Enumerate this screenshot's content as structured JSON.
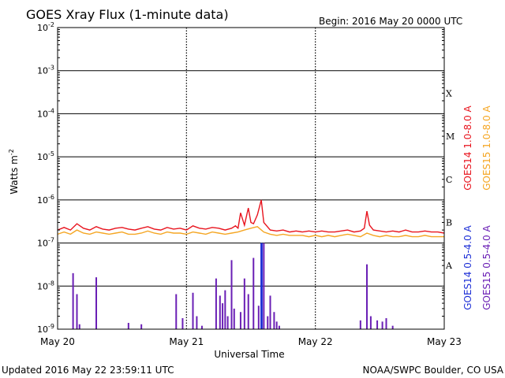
{
  "header": {
    "title": "GOES Xray Flux (1-minute data)",
    "begin": "Begin:  2016 May 20 0000 UTC"
  },
  "footer": {
    "updated": "Updated 2016 May 22 23:59:11 UTC",
    "credit": "NOAA/SWPC Boulder, CO USA"
  },
  "colors": {
    "goes14_long": "#e8141e",
    "goes15_long": "#f5a623",
    "goes14_short": "#1d2fd6",
    "goes15_short": "#6a1fb5",
    "axes": "#000000"
  },
  "chart_data": {
    "type": "line",
    "title": "GOES Xray Flux (1-minute data)",
    "xlabel": "Universal Time",
    "ylabel": "Watts m-2",
    "ylabel_base": "Watts m",
    "ylabel_exp": "-2",
    "yscale": "log",
    "ylim": [
      1e-09,
      0.01
    ],
    "y_ticks": [
      {
        "base": "10",
        "exp": "-9",
        "value": 1e-09
      },
      {
        "base": "10",
        "exp": "-8",
        "value": 1e-08
      },
      {
        "base": "10",
        "exp": "-7",
        "value": 1e-07
      },
      {
        "base": "10",
        "exp": "-6",
        "value": 1e-06
      },
      {
        "base": "10",
        "exp": "-5",
        "value": 1e-05
      },
      {
        "base": "10",
        "exp": "-4",
        "value": 0.0001
      },
      {
        "base": "10",
        "exp": "-3",
        "value": 0.001
      },
      {
        "base": "10",
        "exp": "-2",
        "value": 0.01
      }
    ],
    "x_ticks": [
      "May 20",
      "May 21",
      "May 22",
      "May 23"
    ],
    "flare_classes": [
      {
        "label": "A",
        "value": 3e-08
      },
      {
        "label": "B",
        "value": 3e-07
      },
      {
        "label": "C",
        "value": 3e-06
      },
      {
        "label": "M",
        "value": 3e-05
      },
      {
        "label": "X",
        "value": 0.0003
      }
    ],
    "grid": true,
    "legend_placement": "right",
    "legend_long": [
      {
        "name": "GOES14 1.0-8.0 A",
        "color": "#e8141e"
      },
      {
        "name": "GOES15 1.0-8.0 A",
        "color": "#f5a623"
      }
    ],
    "legend_short": [
      {
        "name": "GOES14 0.5-4.0 A",
        "color": "#1d2fd6"
      },
      {
        "name": "GOES15 0.5-4.0 A",
        "color": "#6a1fb5"
      }
    ],
    "x_unit": "days since 2016 May 20 0000 UTC",
    "series": [
      {
        "name": "GOES14 1.0-8.0 A",
        "color": "#e8141e",
        "x": [
          0,
          0.05,
          0.1,
          0.15,
          0.2,
          0.25,
          0.3,
          0.35,
          0.4,
          0.45,
          0.5,
          0.55,
          0.6,
          0.65,
          0.7,
          0.75,
          0.8,
          0.85,
          0.9,
          0.95,
          1.0,
          1.05,
          1.1,
          1.15,
          1.2,
          1.25,
          1.3,
          1.35,
          1.38,
          1.4,
          1.42,
          1.45,
          1.48,
          1.5,
          1.52,
          1.55,
          1.58,
          1.6,
          1.65,
          1.7,
          1.75,
          1.8,
          1.85,
          1.9,
          1.95,
          2.0,
          2.05,
          2.1,
          2.15,
          2.2,
          2.25,
          2.3,
          2.35,
          2.38,
          2.4,
          2.42,
          2.45,
          2.5,
          2.55,
          2.6,
          2.65,
          2.7,
          2.75,
          2.8,
          2.85,
          2.9,
          2.95,
          3.0
        ],
        "y": [
          2e-07,
          2.3e-07,
          2e-07,
          2.8e-07,
          2.2e-07,
          2e-07,
          2.4e-07,
          2.1e-07,
          2e-07,
          2.2e-07,
          2.3e-07,
          2.1e-07,
          2e-07,
          2.2e-07,
          2.4e-07,
          2.1e-07,
          2e-07,
          2.3e-07,
          2.1e-07,
          2.2e-07,
          2e-07,
          2.5e-07,
          2.2e-07,
          2.1e-07,
          2.3e-07,
          2.2e-07,
          2e-07,
          2.2e-07,
          2.5e-07,
          2.2e-07,
          5e-07,
          2.6e-07,
          6.5e-07,
          3e-07,
          2.8e-07,
          4.5e-07,
          1e-06,
          3e-07,
          2e-07,
          1.9e-07,
          2e-07,
          1.8e-07,
          1.9e-07,
          1.8e-07,
          1.9e-07,
          1.8e-07,
          1.9e-07,
          1.8e-07,
          1.8e-07,
          1.9e-07,
          2e-07,
          1.8e-07,
          1.9e-07,
          2.2e-07,
          5.5e-07,
          2.6e-07,
          2e-07,
          1.9e-07,
          1.8e-07,
          1.9e-07,
          1.8e-07,
          2e-07,
          1.8e-07,
          1.8e-07,
          1.9e-07,
          1.8e-07,
          1.8e-07,
          1.7e-07
        ]
      },
      {
        "name": "GOES15 1.0-8.0 A",
        "color": "#f5a623",
        "x": [
          0,
          0.05,
          0.1,
          0.15,
          0.2,
          0.25,
          0.3,
          0.35,
          0.4,
          0.45,
          0.5,
          0.55,
          0.6,
          0.65,
          0.7,
          0.75,
          0.8,
          0.85,
          0.9,
          0.95,
          1.0,
          1.05,
          1.1,
          1.15,
          1.2,
          1.25,
          1.3,
          1.35,
          1.4,
          1.45,
          1.5,
          1.55,
          1.6,
          1.65,
          1.7,
          1.75,
          1.8,
          1.85,
          1.9,
          1.95,
          2.0,
          2.05,
          2.1,
          2.15,
          2.2,
          2.25,
          2.3,
          2.35,
          2.4,
          2.45,
          2.5,
          2.55,
          2.6,
          2.65,
          2.7,
          2.75,
          2.8,
          2.85,
          2.9,
          2.95,
          3.0
        ],
        "y": [
          1.6e-07,
          1.8e-07,
          1.6e-07,
          2e-07,
          1.7e-07,
          1.6e-07,
          1.8e-07,
          1.7e-07,
          1.6e-07,
          1.7e-07,
          1.8e-07,
          1.6e-07,
          1.6e-07,
          1.7e-07,
          1.9e-07,
          1.7e-07,
          1.6e-07,
          1.8e-07,
          1.7e-07,
          1.7e-07,
          1.6e-07,
          1.8e-07,
          1.7e-07,
          1.6e-07,
          1.8e-07,
          1.7e-07,
          1.6e-07,
          1.7e-07,
          1.8e-07,
          2e-07,
          2.2e-07,
          2.4e-07,
          1.8e-07,
          1.6e-07,
          1.5e-07,
          1.6e-07,
          1.5e-07,
          1.5e-07,
          1.5e-07,
          1.4e-07,
          1.5e-07,
          1.4e-07,
          1.5e-07,
          1.4e-07,
          1.5e-07,
          1.6e-07,
          1.5e-07,
          1.4e-07,
          1.7e-07,
          1.5e-07,
          1.4e-07,
          1.5e-07,
          1.4e-07,
          1.4e-07,
          1.5e-07,
          1.4e-07,
          1.4e-07,
          1.5e-07,
          1.4e-07,
          1.4e-07,
          1.4e-07
        ]
      },
      {
        "name": "GOES14 0.5-4.0 A",
        "color": "#1d2fd6",
        "x": [
          1.58,
          1.585
        ],
        "y": [
          1e-07,
          1e-07
        ]
      },
      {
        "name": "GOES15 0.5-4.0 A",
        "color": "#6a1fb5",
        "x": [
          0.12,
          0.15,
          0.17,
          0.3,
          0.55,
          0.65,
          0.92,
          0.97,
          1.05,
          1.08,
          1.12,
          1.23,
          1.26,
          1.28,
          1.3,
          1.32,
          1.35,
          1.37,
          1.42,
          1.45,
          1.48,
          1.52,
          1.56,
          1.6,
          1.63,
          1.65,
          1.68,
          1.7,
          1.72,
          2.35,
          2.4,
          2.43,
          2.48,
          2.52,
          2.55,
          2.6
        ],
        "y": [
          2e-08,
          6.5e-09,
          1.3e-09,
          1.6e-08,
          1.4e-09,
          1.3e-09,
          6.5e-09,
          1.8e-09,
          7e-09,
          2e-09,
          1.2e-09,
          1.5e-08,
          6e-09,
          4e-09,
          8e-09,
          2e-09,
          4e-08,
          3e-09,
          2.5e-09,
          1.5e-08,
          6.5e-09,
          4.5e-08,
          3.5e-09,
          1e-07,
          2e-09,
          6e-09,
          2.5e-09,
          1.5e-09,
          1.2e-09,
          1.6e-09,
          3.2e-08,
          2e-09,
          1.6e-09,
          1.5e-09,
          1.8e-09,
          1.2e-09
        ]
      }
    ]
  }
}
